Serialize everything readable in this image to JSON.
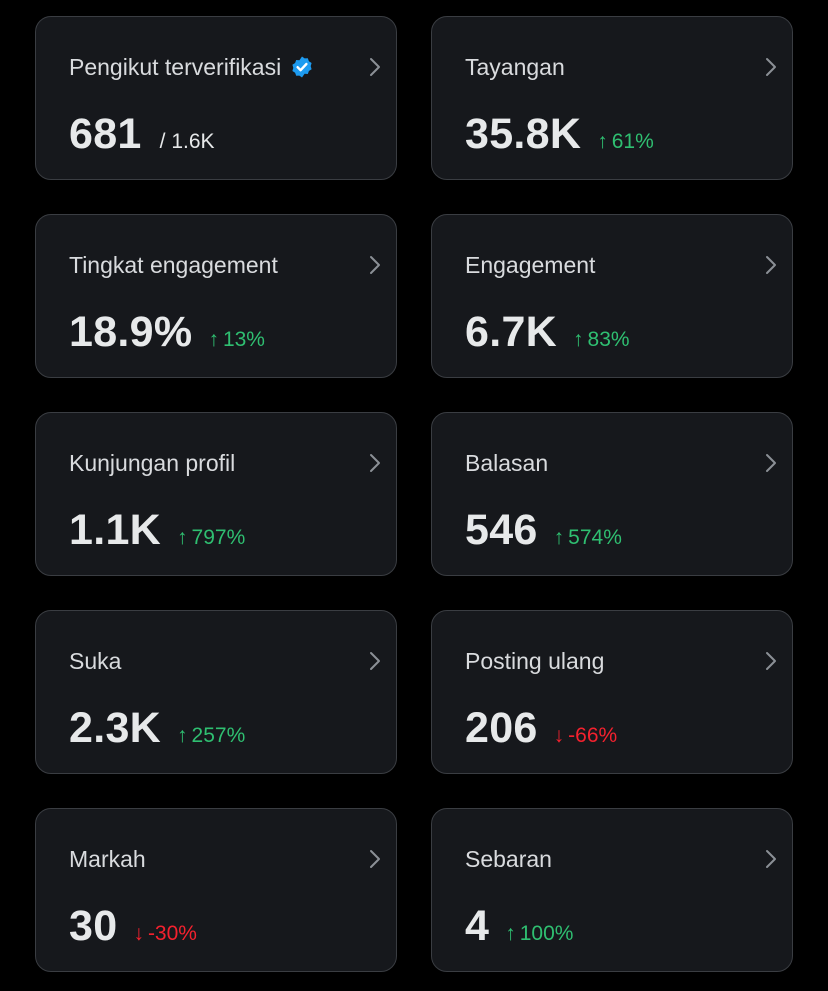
{
  "colors": {
    "background": "#000000",
    "card_background": "#16181c",
    "card_border": "#3a3d42",
    "positive": "#2fbf71",
    "negative": "#f4212e",
    "verified_badge": "#1d9bf0"
  },
  "cards": [
    {
      "label": "Pengikut terverifikasi",
      "value": "681",
      "sub": "/ 1.6K",
      "icon": "verified-badge-icon"
    },
    {
      "label": "Tayangan",
      "value": "35.8K",
      "arrow": "↑",
      "delta": "61%",
      "direction": "up"
    },
    {
      "label": "Tingkat engagement",
      "value": "18.9%",
      "arrow": "↑",
      "delta": "13%",
      "direction": "up"
    },
    {
      "label": "Engagement",
      "value": "6.7K",
      "arrow": "↑",
      "delta": "83%",
      "direction": "up"
    },
    {
      "label": "Kunjungan profil",
      "value": "1.1K",
      "arrow": "↑",
      "delta": "797%",
      "direction": "up"
    },
    {
      "label": "Balasan",
      "value": "546",
      "arrow": "↑",
      "delta": "574%",
      "direction": "up"
    },
    {
      "label": "Suka",
      "value": "2.3K",
      "arrow": "↑",
      "delta": "257%",
      "direction": "up"
    },
    {
      "label": "Posting ulang",
      "value": "206",
      "arrow": "↓",
      "delta": "-66%",
      "direction": "down"
    },
    {
      "label": "Markah",
      "value": "30",
      "arrow": "↓",
      "delta": "-30%",
      "direction": "down"
    },
    {
      "label": "Sebaran",
      "value": "4",
      "arrow": "↑",
      "delta": "100%",
      "direction": "up"
    }
  ]
}
